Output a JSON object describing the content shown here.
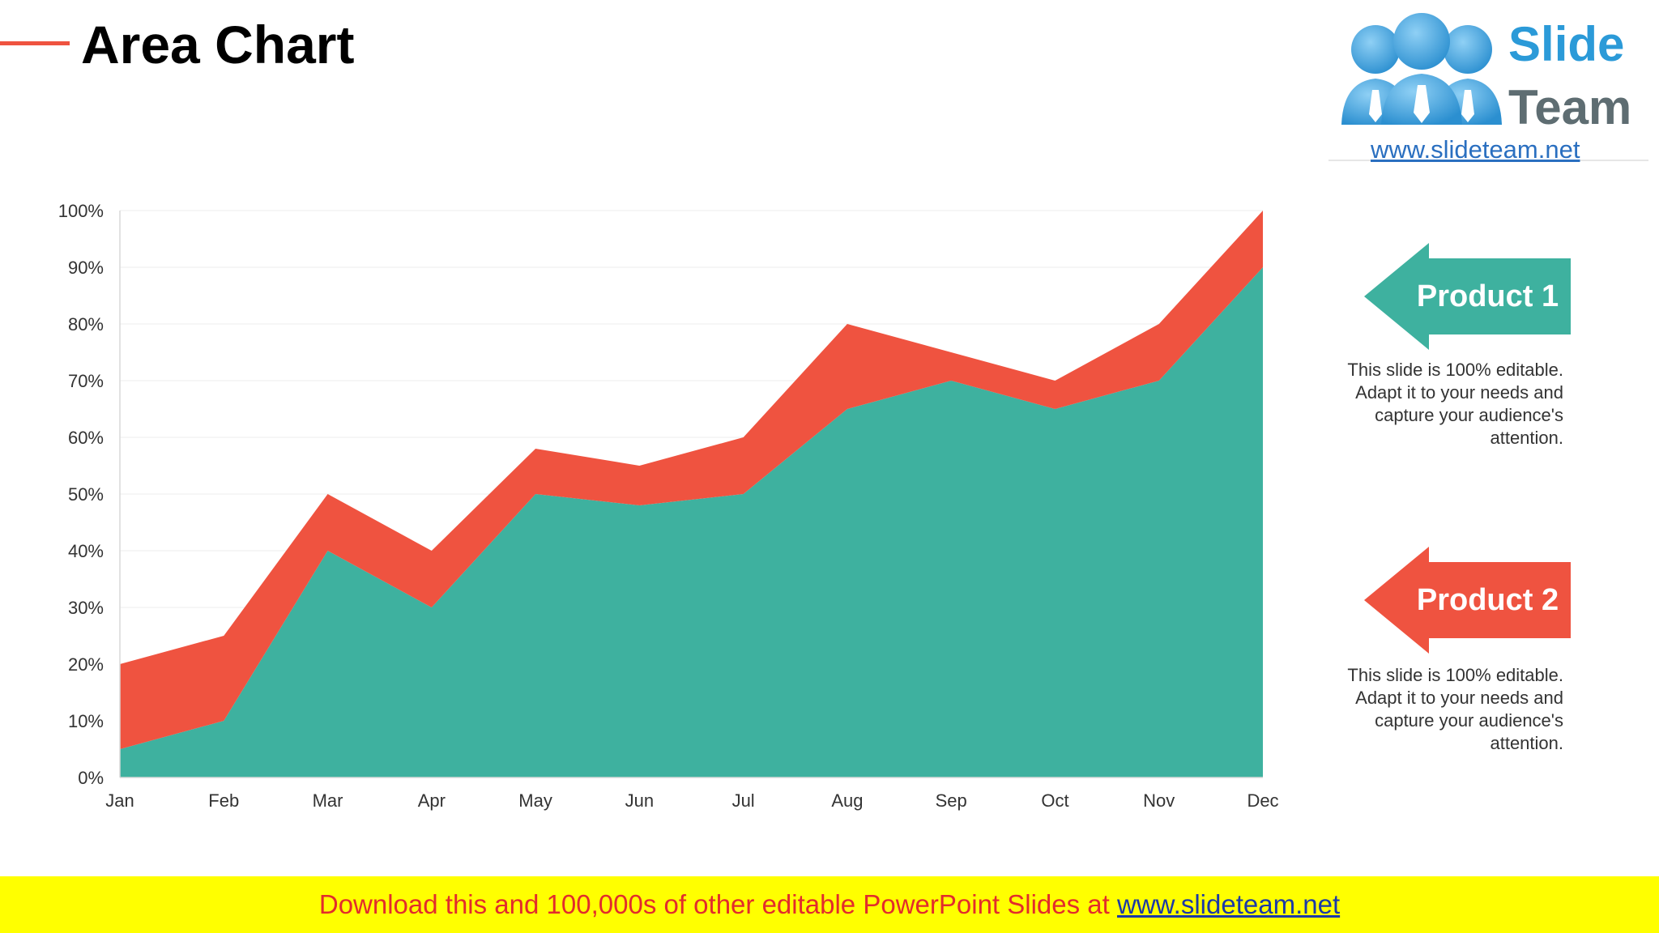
{
  "slide": {
    "title": "Area Chart"
  },
  "logo": {
    "word1": "Slide",
    "word2": "Team",
    "url": "www.slideteam.net"
  },
  "legend": [
    {
      "label": "Product 1",
      "color": "#3eb19f",
      "description": "This slide is 100% editable. Adapt it to your needs and capture your audience's attention."
    },
    {
      "label": "Product 2",
      "color": "#ef5340",
      "description": "This slide is 100% editable. Adapt it to your needs and capture your audience's attention."
    }
  ],
  "footer": {
    "text": "Download this and 100,000s of other editable PowerPoint Slides at",
    "link": "www.slideteam.net"
  },
  "chart_data": {
    "type": "area",
    "stacked": true,
    "categories": [
      "Jan",
      "Feb",
      "Mar",
      "Apr",
      "May",
      "Jun",
      "Jul",
      "Aug",
      "Sep",
      "Oct",
      "Nov",
      "Dec"
    ],
    "series": [
      {
        "name": "Product 1",
        "color": "#3eb19f",
        "values": [
          5,
          10,
          40,
          30,
          50,
          48,
          50,
          65,
          70,
          65,
          70,
          90
        ]
      },
      {
        "name": "Product 2",
        "color": "#ef5340",
        "values": [
          15,
          15,
          10,
          10,
          8,
          7,
          10,
          15,
          5,
          5,
          10,
          10
        ]
      }
    ],
    "yticks": [
      "0%",
      "10%",
      "20%",
      "30%",
      "40%",
      "50%",
      "60%",
      "70%",
      "80%",
      "90%",
      "100%"
    ],
    "ylim": [
      0,
      100
    ],
    "grid": true,
    "legend_position": "right",
    "title": "",
    "xlabel": "",
    "ylabel": ""
  }
}
